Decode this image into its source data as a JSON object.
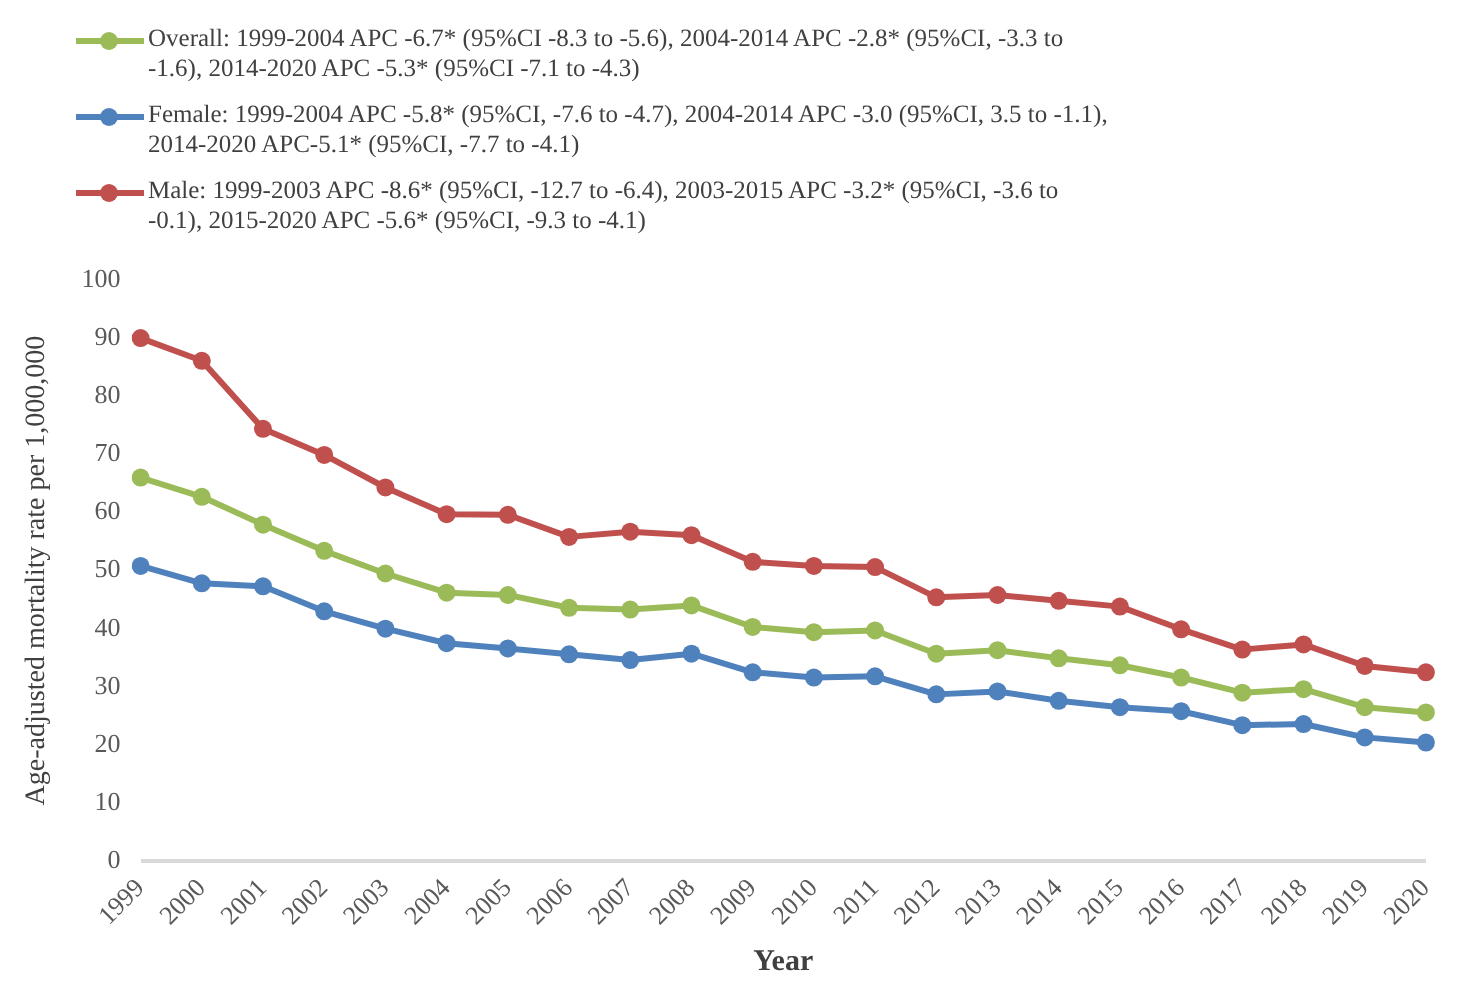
{
  "chart_data": {
    "type": "line",
    "xlabel": "Year",
    "ylabel": "Age-adjusted mortality rate per 1,000,000",
    "categories": [
      "1999",
      "2000",
      "2001",
      "2002",
      "2003",
      "2004",
      "2005",
      "2006",
      "2007",
      "2008",
      "2009",
      "2010",
      "2011",
      "2012",
      "2013",
      "2014",
      "2015",
      "2016",
      "2017",
      "2018",
      "2019",
      "2020"
    ],
    "series": [
      {
        "name": "Overall: 1999-2004 APC -6.7* (95%CI -8.3 to -5.6), 2004-2014 APC -2.8* (95%CI, -3.3 to -1.6), 2014-2020 APC -5.3* (95%CI -7.1 to -4.3)",
        "color": "#9bbb59",
        "values": [
          66.0,
          62.7,
          57.9,
          53.4,
          49.5,
          46.2,
          45.8,
          43.6,
          43.3,
          44.0,
          40.3,
          39.4,
          39.7,
          35.7,
          36.3,
          34.9,
          33.7,
          31.6,
          29.0,
          29.6,
          26.5,
          25.6
        ]
      },
      {
        "name": "Female: 1999-2004 APC -5.8* (95%CI, -7.6 to -4.7), 2004-2014 APC -3.0 (95%CI, 3.5 to -1.1), 2014-2020 APC-5.1* (95%CI, -7.7 to -4.1)",
        "color": "#4f81bd",
        "values": [
          50.8,
          47.8,
          47.3,
          43.0,
          40.0,
          37.5,
          36.6,
          35.6,
          34.6,
          35.7,
          32.5,
          31.6,
          31.8,
          28.7,
          29.2,
          27.6,
          26.5,
          25.8,
          23.4,
          23.6,
          21.3,
          20.4
        ]
      },
      {
        "name": "Male: 1999-2003 APC -8.6* (95%CI, -12.7 to -6.4), 2003-2015 APC -3.2* (95%CI, -3.6 to -0.1), 2015-2020 APC -5.6* (95%CI, -9.3 to -4.1)",
        "color": "#c0504d",
        "values": [
          90.0,
          86.1,
          74.4,
          69.9,
          64.3,
          59.7,
          59.6,
          55.8,
          56.7,
          56.1,
          51.5,
          50.8,
          50.6,
          45.4,
          45.8,
          44.8,
          43.8,
          39.9,
          36.4,
          37.3,
          33.6,
          32.5
        ]
      }
    ],
    "ylim": [
      0,
      100
    ],
    "yticks": [
      0,
      10,
      20,
      30,
      40,
      50,
      60,
      70,
      80,
      90,
      100
    ],
    "grid": false,
    "legend": "top",
    "marker": "circle",
    "line_style": "solid"
  }
}
